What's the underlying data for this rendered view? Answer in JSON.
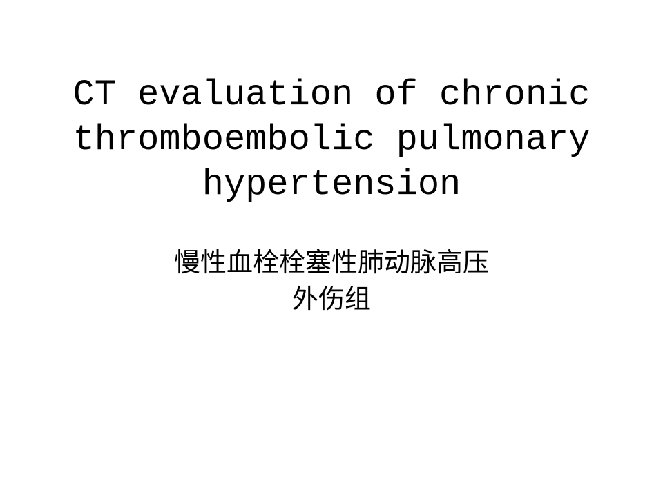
{
  "slide": {
    "title": "CT evaluation of chronic thromboembolic pulmonary hypertension",
    "subtitle_line1": "慢性血栓栓塞性肺动脉高压",
    "subtitle_line2": "外伤组",
    "background_color": "#ffffff",
    "title_color": "#000000",
    "subtitle_color": "#000000",
    "title_fontsize": 52,
    "subtitle_fontsize": 38,
    "title_font_family": "Courier New / SimSun monospace",
    "subtitle_font_family": "SimSun serif"
  }
}
